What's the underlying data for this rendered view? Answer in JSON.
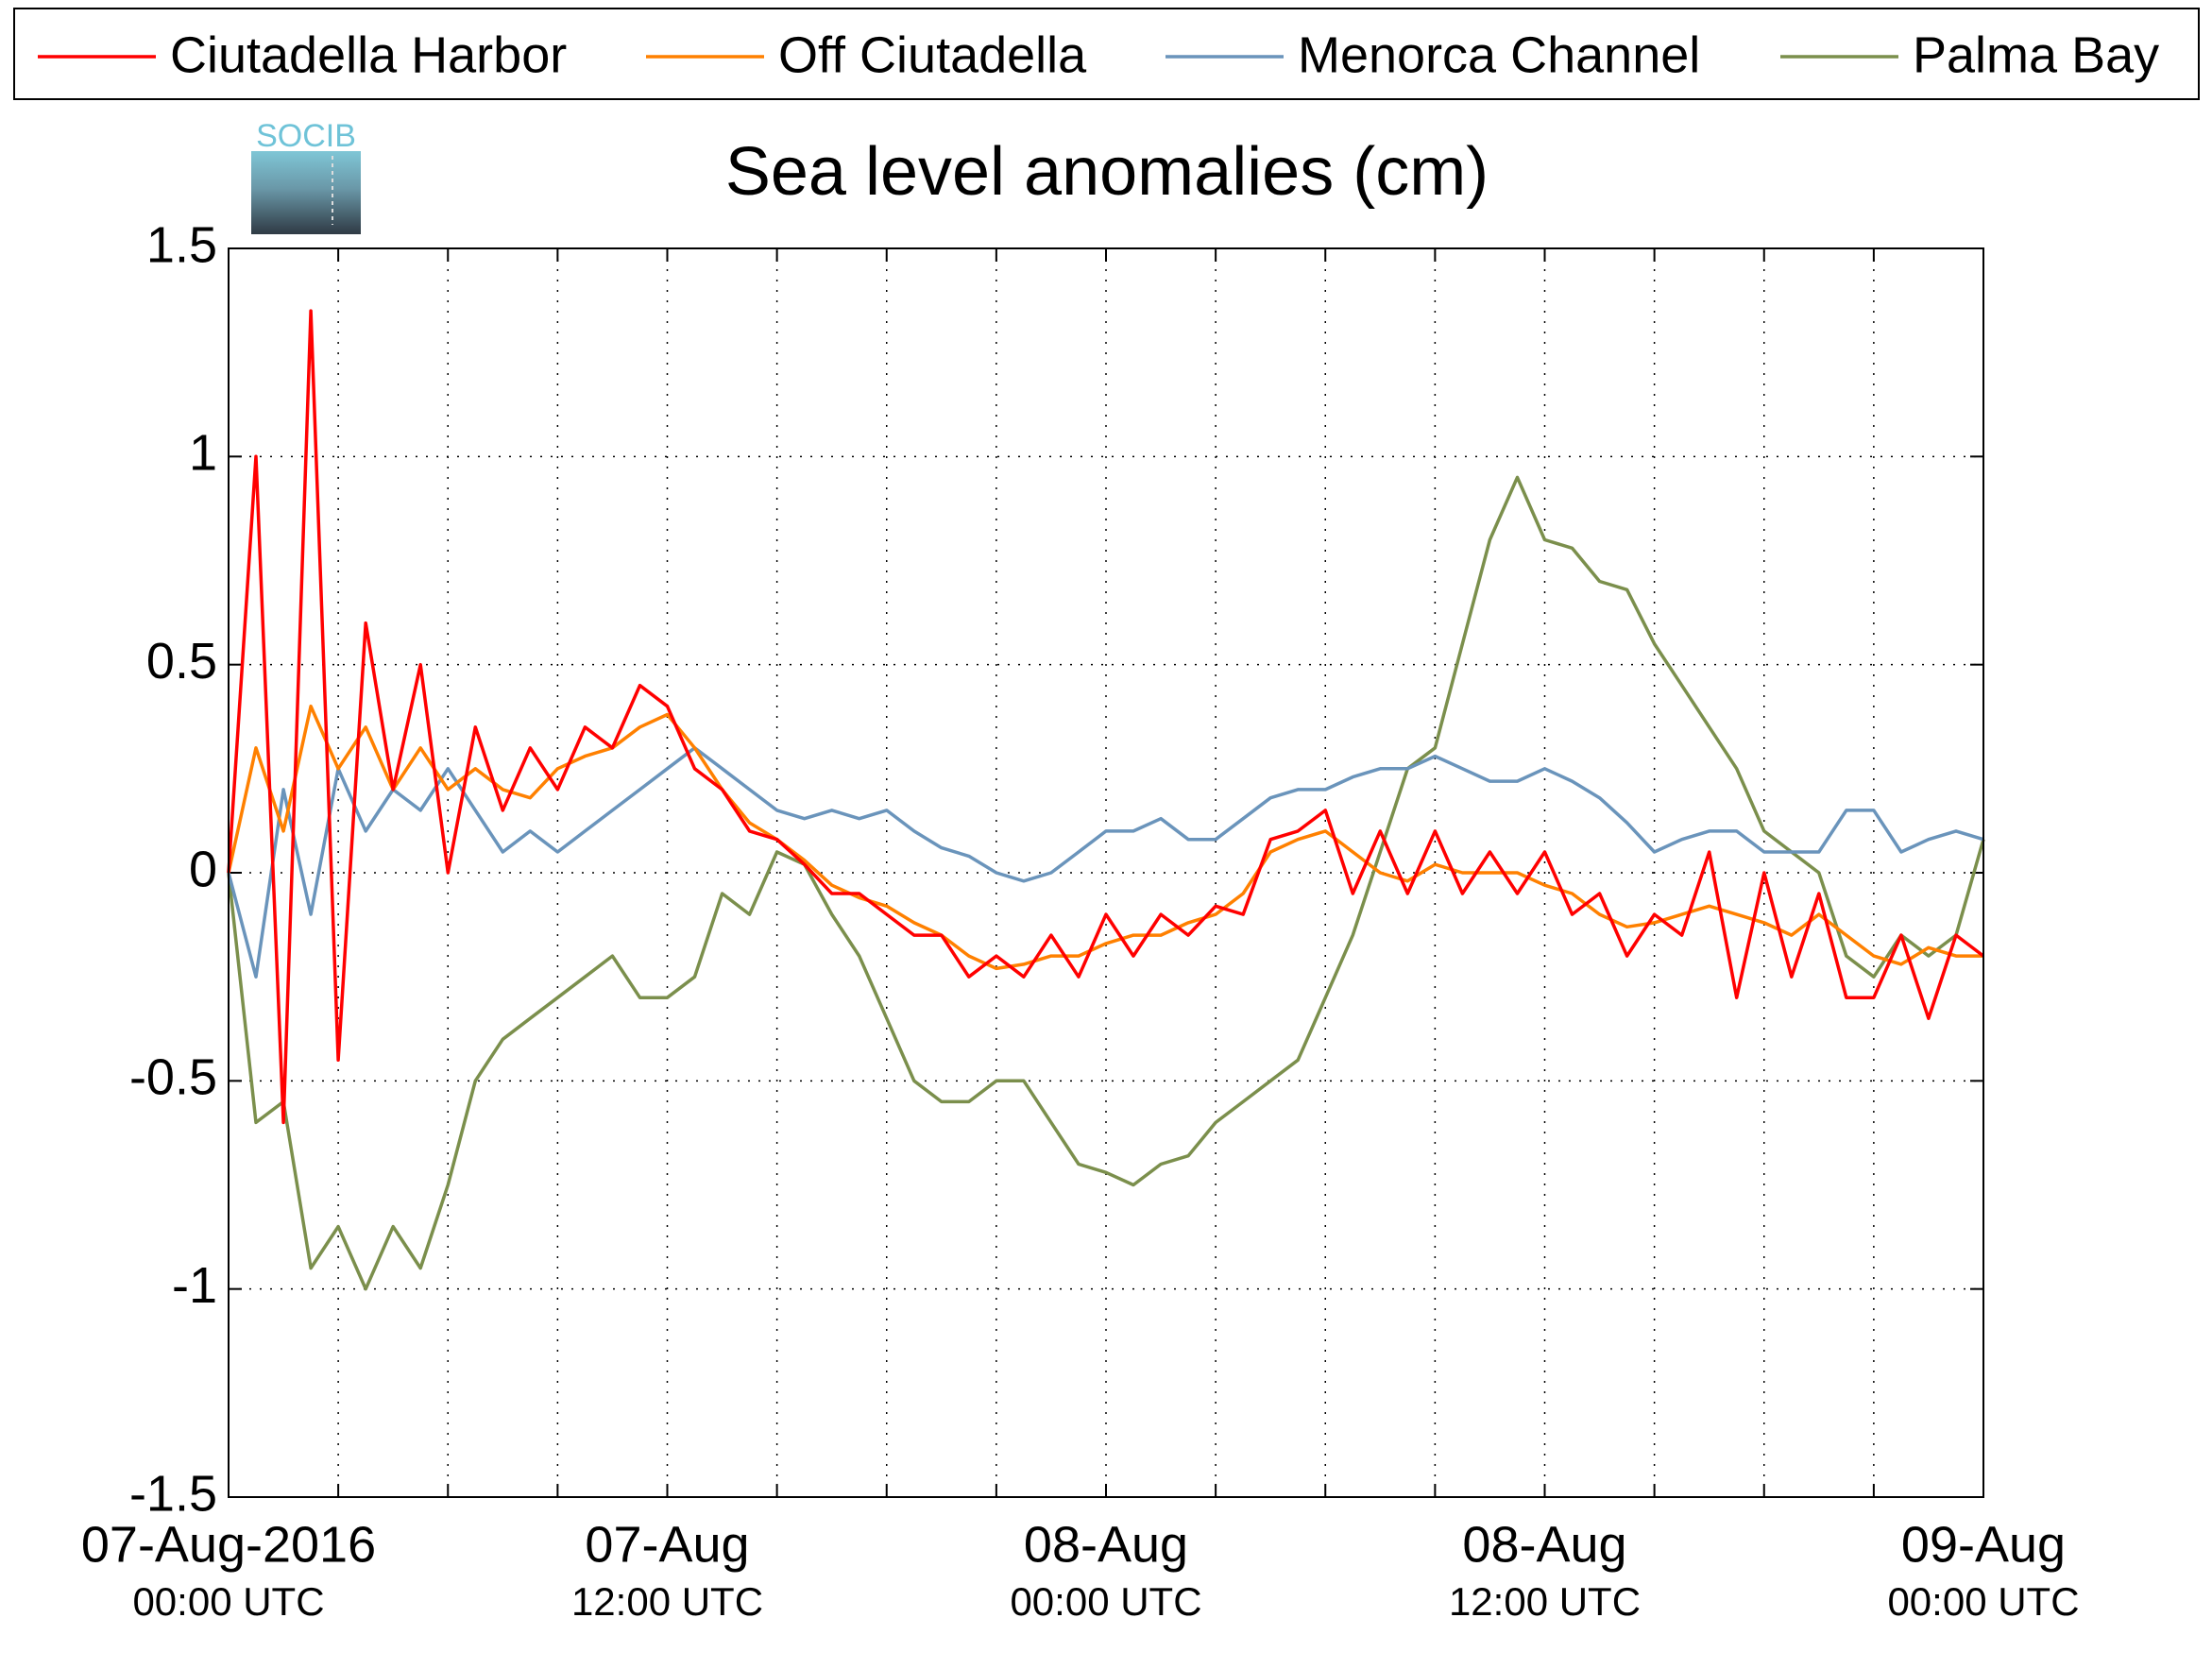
{
  "logo_text": "SOCIB",
  "chart_data": {
    "type": "line",
    "title": "Sea level anomalies (cm)",
    "x": [
      0,
      1,
      2,
      3,
      4,
      5,
      6,
      7,
      8,
      9,
      10,
      11,
      12,
      13,
      14,
      15,
      16,
      17,
      18,
      19,
      20,
      21,
      22,
      23,
      24,
      25,
      26,
      27,
      28,
      29,
      30,
      31,
      32,
      33,
      34,
      35,
      36,
      37,
      38,
      39,
      40,
      41,
      42,
      43,
      44,
      45,
      46,
      47,
      48,
      49,
      50,
      51,
      52,
      53,
      54,
      55,
      56,
      57,
      58,
      59,
      60,
      61,
      62,
      63,
      64
    ],
    "xlim": [
      0,
      64
    ],
    "xticks": [
      {
        "value": 0,
        "label": [
          "07-Aug-2016",
          "00:00 UTC"
        ]
      },
      {
        "value": 4,
        "label": null
      },
      {
        "value": 8,
        "label": null
      },
      {
        "value": 12,
        "label": null
      },
      {
        "value": 16,
        "label": [
          "07-Aug",
          "12:00 UTC"
        ]
      },
      {
        "value": 20,
        "label": null
      },
      {
        "value": 24,
        "label": null
      },
      {
        "value": 28,
        "label": null
      },
      {
        "value": 32,
        "label": [
          "08-Aug",
          "00:00 UTC"
        ]
      },
      {
        "value": 36,
        "label": null
      },
      {
        "value": 40,
        "label": null
      },
      {
        "value": 44,
        "label": null
      },
      {
        "value": 48,
        "label": [
          "08-Aug",
          "12:00 UTC"
        ]
      },
      {
        "value": 52,
        "label": null
      },
      {
        "value": 56,
        "label": null
      },
      {
        "value": 60,
        "label": null
      },
      {
        "value": 64,
        "label": [
          "09-Aug",
          "00:00 UTC"
        ]
      }
    ],
    "ylim": [
      -1.5,
      1.5
    ],
    "yticks": [
      -1.5,
      -1,
      -0.5,
      0,
      0.5,
      1,
      1.5
    ],
    "grid": true,
    "legend": "top",
    "series": [
      {
        "name": "Ciutadella Harbor",
        "color": "#ff0000",
        "values": [
          0,
          1.0,
          -0.6,
          1.35,
          -0.45,
          0.6,
          0.2,
          0.5,
          0,
          0.35,
          0.15,
          0.3,
          0.2,
          0.35,
          0.3,
          0.45,
          0.4,
          0.25,
          0.2,
          0.1,
          0.08,
          0.02,
          -0.05,
          -0.05,
          -0.1,
          -0.15,
          -0.15,
          -0.25,
          -0.2,
          -0.25,
          -0.15,
          -0.25,
          -0.1,
          -0.2,
          -0.1,
          -0.15,
          -0.08,
          -0.1,
          0.08,
          0.1,
          0.15,
          -0.05,
          0.1,
          -0.05,
          0.1,
          -0.05,
          0.05,
          -0.05,
          0.05,
          -0.1,
          -0.05,
          -0.2,
          -0.1,
          -0.15,
          0.05,
          -0.3,
          0,
          -0.25,
          -0.05,
          -0.3,
          -0.3,
          -0.15,
          -0.35,
          -0.15,
          -0.2
        ]
      },
      {
        "name": "Off Ciutadella",
        "color": "#ff8000",
        "values": [
          0,
          0.3,
          0.1,
          0.4,
          0.25,
          0.35,
          0.2,
          0.3,
          0.2,
          0.25,
          0.2,
          0.18,
          0.25,
          0.28,
          0.3,
          0.35,
          0.38,
          0.3,
          0.2,
          0.12,
          0.08,
          0.03,
          -0.03,
          -0.06,
          -0.08,
          -0.12,
          -0.15,
          -0.2,
          -0.23,
          -0.22,
          -0.2,
          -0.2,
          -0.17,
          -0.15,
          -0.15,
          -0.12,
          -0.1,
          -0.05,
          0.05,
          0.08,
          0.1,
          0.05,
          0,
          -0.02,
          0.02,
          0,
          0,
          0,
          -0.03,
          -0.05,
          -0.1,
          -0.13,
          -0.12,
          -0.1,
          -0.08,
          -0.1,
          -0.12,
          -0.15,
          -0.1,
          -0.15,
          -0.2,
          -0.22,
          -0.18,
          -0.2,
          -0.2
        ]
      },
      {
        "name": "Menorca Channel",
        "color": "#6a94bb",
        "values": [
          0,
          -0.25,
          0.2,
          -0.1,
          0.25,
          0.1,
          0.2,
          0.15,
          0.25,
          0.15,
          0.05,
          0.1,
          0.05,
          0.1,
          0.15,
          0.2,
          0.25,
          0.3,
          0.25,
          0.2,
          0.15,
          0.13,
          0.15,
          0.13,
          0.15,
          0.1,
          0.06,
          0.04,
          0,
          -0.02,
          0,
          0.05,
          0.1,
          0.1,
          0.13,
          0.08,
          0.08,
          0.13,
          0.18,
          0.2,
          0.2,
          0.23,
          0.25,
          0.25,
          0.28,
          0.25,
          0.22,
          0.22,
          0.25,
          0.22,
          0.18,
          0.12,
          0.05,
          0.08,
          0.1,
          0.1,
          0.05,
          0.05,
          0.05,
          0.15,
          0.15,
          0.05,
          0.08,
          0.1,
          0.08
        ]
      },
      {
        "name": "Palma Bay",
        "color": "#7b8f4c",
        "values": [
          0,
          -0.6,
          -0.55,
          -0.95,
          -0.85,
          -1.0,
          -0.85,
          -0.95,
          -0.75,
          -0.5,
          -0.4,
          -0.35,
          -0.3,
          -0.25,
          -0.2,
          -0.3,
          -0.3,
          -0.25,
          -0.05,
          -0.1,
          0.05,
          0.02,
          -0.1,
          -0.2,
          -0.35,
          -0.5,
          -0.55,
          -0.55,
          -0.5,
          -0.5,
          -0.6,
          -0.7,
          -0.72,
          -0.75,
          -0.7,
          -0.68,
          -0.6,
          -0.55,
          -0.5,
          -0.45,
          -0.3,
          -0.15,
          0.05,
          0.25,
          0.3,
          0.55,
          0.8,
          0.95,
          0.8,
          0.78,
          0.7,
          0.68,
          0.55,
          0.45,
          0.35,
          0.25,
          0.1,
          0.05,
          0,
          -0.2,
          -0.25,
          -0.15,
          -0.2,
          -0.15,
          0.08
        ]
      }
    ]
  }
}
